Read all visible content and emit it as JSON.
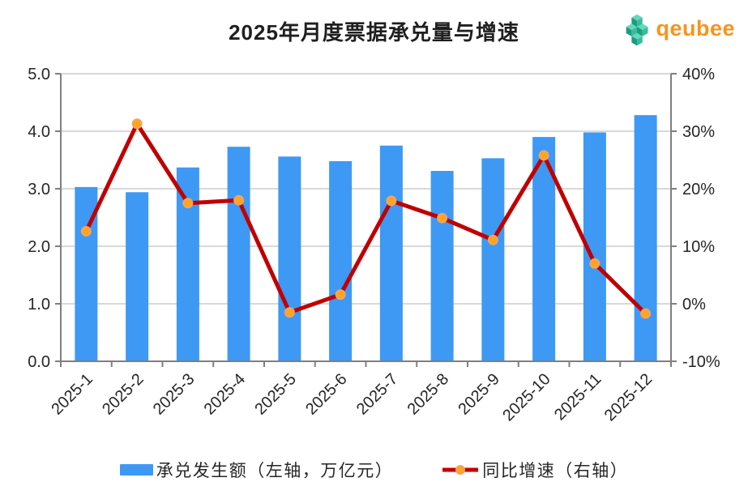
{
  "title": "2025年月度票据承兑量与增速",
  "logo": {
    "text": "qeubee",
    "icon": "cube-cluster"
  },
  "legend": {
    "bar_label": "承兑发生额（左轴，万亿元）",
    "line_label": "同比增速（右轴）"
  },
  "colors": {
    "bar": "#3E99F5",
    "line": "#C00000",
    "marker_fill": "#FFA41E",
    "marker_stroke": "#F2A45C",
    "grid": "#D9D9D9",
    "axis": "#7F7F7F",
    "tick_text": "#262626",
    "title_text": "#1F1F1F",
    "logo_orange": "#F7941E",
    "logo_cube_top": "#63D8BA",
    "logo_cube_left": "#1E9A80",
    "logo_cube_right": "#36BD9E"
  },
  "chart_data": {
    "type": "combo",
    "title": "2025年月度票据承兑量与增速",
    "categories": [
      "2025-1",
      "2025-2",
      "2025-3",
      "2025-4",
      "2025-5",
      "2025-6",
      "2025-7",
      "2025-8",
      "2025-9",
      "2025-10",
      "2025-11",
      "2025-12"
    ],
    "series": [
      {
        "name": "承兑发生额（左轴，万亿元）",
        "type": "bar",
        "axis": "left",
        "unit": "万亿元",
        "values": [
          3.03,
          2.94,
          3.37,
          3.73,
          3.56,
          3.48,
          3.75,
          3.31,
          3.53,
          3.9,
          3.98,
          4.28
        ]
      },
      {
        "name": "同比增速（右轴）",
        "type": "line",
        "axis": "right",
        "unit": "%",
        "values": [
          12.6,
          31.3,
          17.5,
          18.0,
          -1.5,
          1.6,
          17.9,
          14.9,
          11.1,
          25.8,
          7.0,
          -1.7
        ]
      }
    ],
    "left_axis": {
      "min": 0,
      "max": 5,
      "tick_values": [
        5,
        4,
        3,
        2,
        1,
        0
      ],
      "tick_labels": [
        "5.0",
        "4.0",
        "3.0",
        "2.0",
        "1.0",
        "0.0"
      ]
    },
    "right_axis": {
      "min": -10,
      "max": 40,
      "tick_values": [
        40,
        30,
        20,
        10,
        0,
        -10
      ],
      "tick_labels": [
        "40%",
        "30%",
        "20%",
        "10%",
        "0%",
        "-10%"
      ]
    },
    "grid": true,
    "legend_position": "bottom"
  }
}
